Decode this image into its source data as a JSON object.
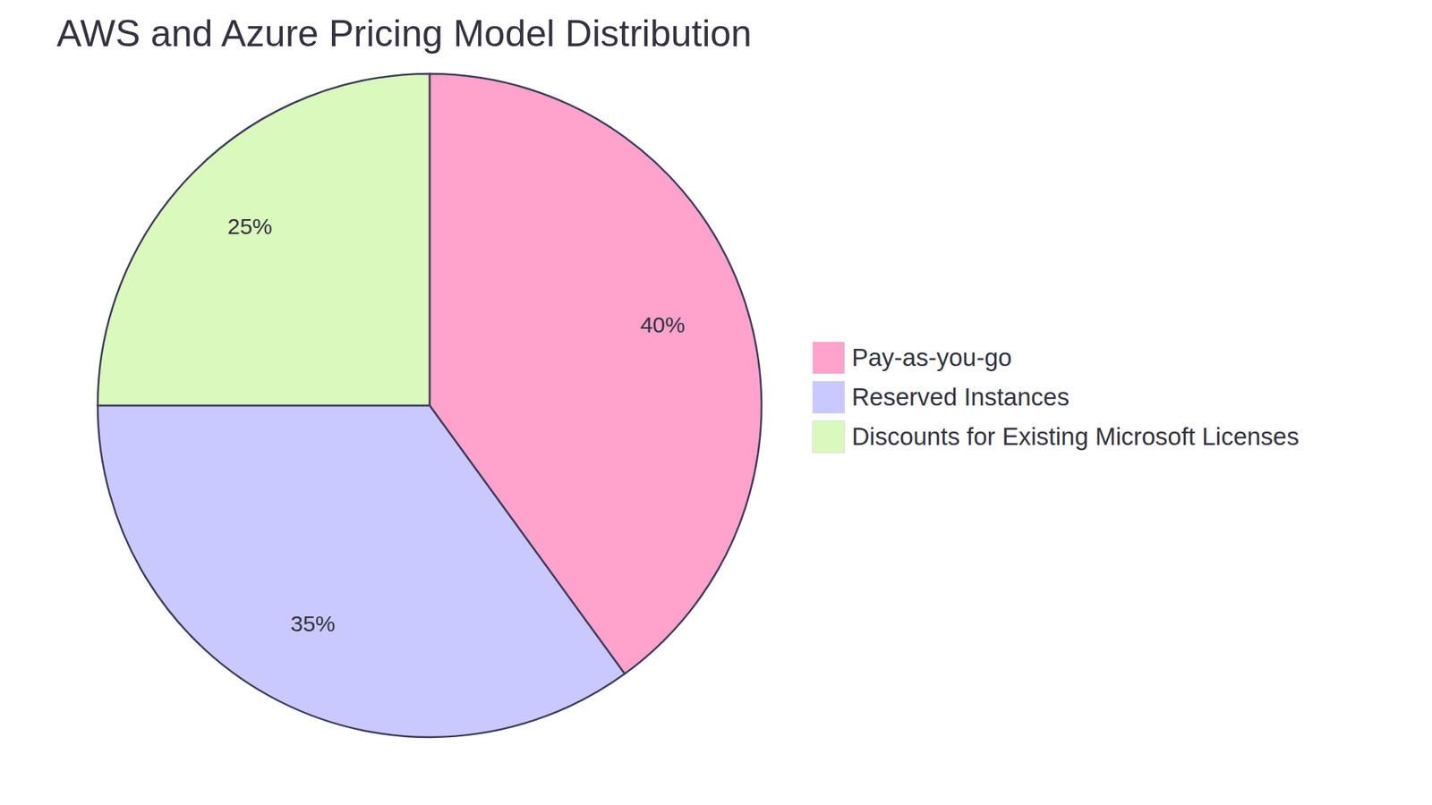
{
  "chart_data": {
    "type": "pie",
    "title": "AWS and Azure Pricing Model Distribution",
    "categories": [
      "Pay-as-you-go",
      "Reserved Instances",
      "Discounts for Existing Microsoft Licenses"
    ],
    "values": [
      40,
      35,
      25
    ],
    "value_labels": [
      "40%",
      "35%",
      "25%"
    ],
    "colors": [
      "#FFA3CC",
      "#C9C9FF",
      "#DAF9BC"
    ],
    "data_labels": true,
    "legend": "right"
  }
}
